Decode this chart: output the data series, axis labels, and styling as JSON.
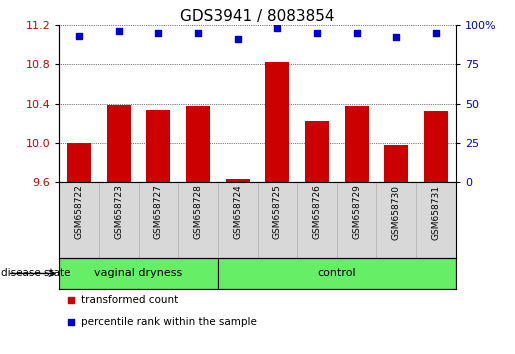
{
  "title": "GDS3941 / 8083854",
  "samples": [
    "GSM658722",
    "GSM658723",
    "GSM658727",
    "GSM658728",
    "GSM658724",
    "GSM658725",
    "GSM658726",
    "GSM658729",
    "GSM658730",
    "GSM658731"
  ],
  "bar_values": [
    10.0,
    10.39,
    10.33,
    10.37,
    9.63,
    10.82,
    10.22,
    10.37,
    9.98,
    10.32
  ],
  "dot_values": [
    93,
    96,
    95,
    95,
    91,
    98,
    95,
    95,
    92,
    95
  ],
  "ylim_left": [
    9.6,
    11.2
  ],
  "ylim_right": [
    0,
    100
  ],
  "yticks_left": [
    9.6,
    10.0,
    10.4,
    10.8,
    11.2
  ],
  "yticks_right": [
    0,
    25,
    50,
    75,
    100
  ],
  "ytick_labels_right": [
    "0",
    "25",
    "50",
    "75",
    "100%"
  ],
  "bar_color": "#cc0000",
  "dot_color": "#0000cc",
  "group_bg_color": "#66ee66",
  "sample_bg_color": "#d8d8d8",
  "legend_items": [
    {
      "color": "#cc0000",
      "label": "transformed count"
    },
    {
      "color": "#0000cc",
      "label": "percentile rank within the sample"
    }
  ],
  "title_fontsize": 11,
  "tick_fontsize": 8,
  "bar_width": 0.6,
  "group_ranges": [
    [
      0,
      4,
      "vaginal dryness"
    ],
    [
      4,
      10,
      "control"
    ]
  ]
}
